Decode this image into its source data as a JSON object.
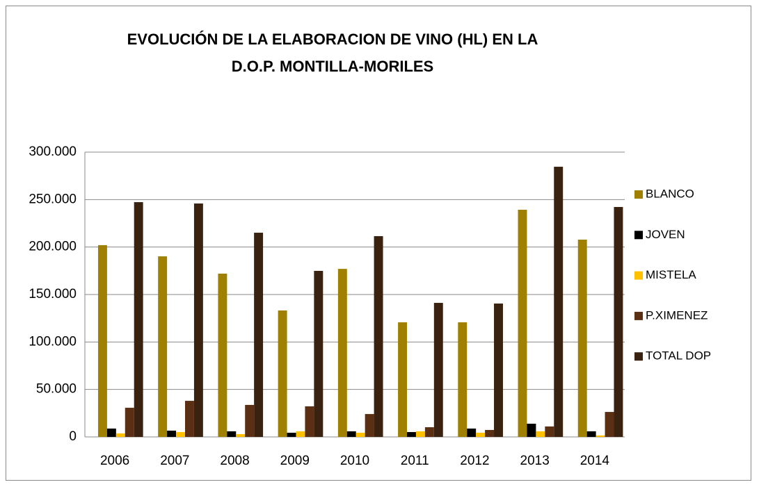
{
  "chart_data": {
    "type": "bar",
    "title": [
      "EVOLUCIÓN DE LA ELABORACION DE VINO (HL)  EN LA",
      "D.O.P. MONTILLA-MORILES"
    ],
    "categories": [
      "2006",
      "2007",
      "2008",
      "2009",
      "2010",
      "2011",
      "2012",
      "2013",
      "2014"
    ],
    "series": [
      {
        "name": "BLANCO",
        "color": "#a08000",
        "values": [
          202000,
          190200,
          172000,
          133200,
          177000,
          120700,
          120700,
          239300,
          207800
        ]
      },
      {
        "name": "JOVEN",
        "color": "#000000",
        "values": [
          8800,
          6600,
          5900,
          4400,
          5900,
          5100,
          8800,
          13900,
          5900
        ]
      },
      {
        "name": "MISTELA",
        "color": "#ffc000",
        "values": [
          3700,
          5100,
          2900,
          5900,
          4400,
          5900,
          4400,
          5900,
          1500
        ]
      },
      {
        "name": "P.XIMENEZ",
        "color": "#5b2f14",
        "values": [
          30700,
          38000,
          33700,
          32200,
          24100,
          10200,
          7300,
          11000,
          26300
        ]
      },
      {
        "name": "TOTAL DOP",
        "color": "#3a2210",
        "values": [
          247300,
          245900,
          215100,
          174900,
          211500,
          141200,
          140500,
          284600,
          242200
        ]
      }
    ],
    "ylim": [
      0,
      300000
    ],
    "yticks": [
      0,
      {
        "value": 50000,
        "label": "50.000"
      },
      {
        "value": 100000,
        "label": "100.000"
      },
      {
        "value": 150000,
        "label": "150.000"
      },
      {
        "value": 200000,
        "label": "200.000"
      },
      {
        "value": 250000,
        "label": "250.000"
      },
      {
        "value": 300000,
        "label": "300.000"
      }
    ],
    "grid": true,
    "legend": "right"
  }
}
